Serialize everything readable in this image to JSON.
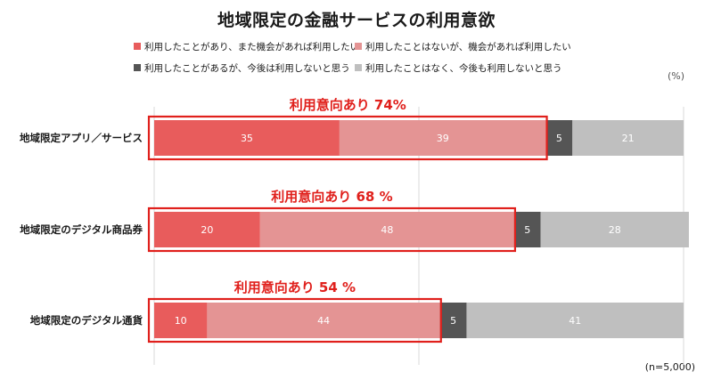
{
  "chart_data": {
    "type": "bar",
    "orientation": "horizontal",
    "stacked": true,
    "title": "地域限定の金融サービスの利用意欲",
    "unit": "(%)",
    "sample_size": "(n=5,000)",
    "xlim": [
      0,
      100
    ],
    "categories": [
      "地域限定アプリ／サービス",
      "地域限定のデジタル商品券",
      "地域限定のデジタル通貨"
    ],
    "series": [
      {
        "name": "利用したことがあり、また機会があれば利用したい",
        "color": "#e85c5c",
        "values": [
          35,
          20,
          10
        ]
      },
      {
        "name": "利用したことはないが、機会があれば利用したい",
        "color": "#e49494",
        "values": [
          39,
          48,
          44
        ]
      },
      {
        "name": "利用したことがあるが、今後は利用しないと思う",
        "color": "#555555",
        "values": [
          5,
          5,
          5
        ]
      },
      {
        "name": "利用したことはなく、今後も利用しないと思う",
        "color": "#bfbfbf",
        "values": [
          21,
          28,
          41
        ]
      }
    ],
    "callouts": [
      "利用意向あり 74%",
      "利用意向あり 68 %",
      "利用意向あり 54 %"
    ],
    "legend_position": "top"
  }
}
